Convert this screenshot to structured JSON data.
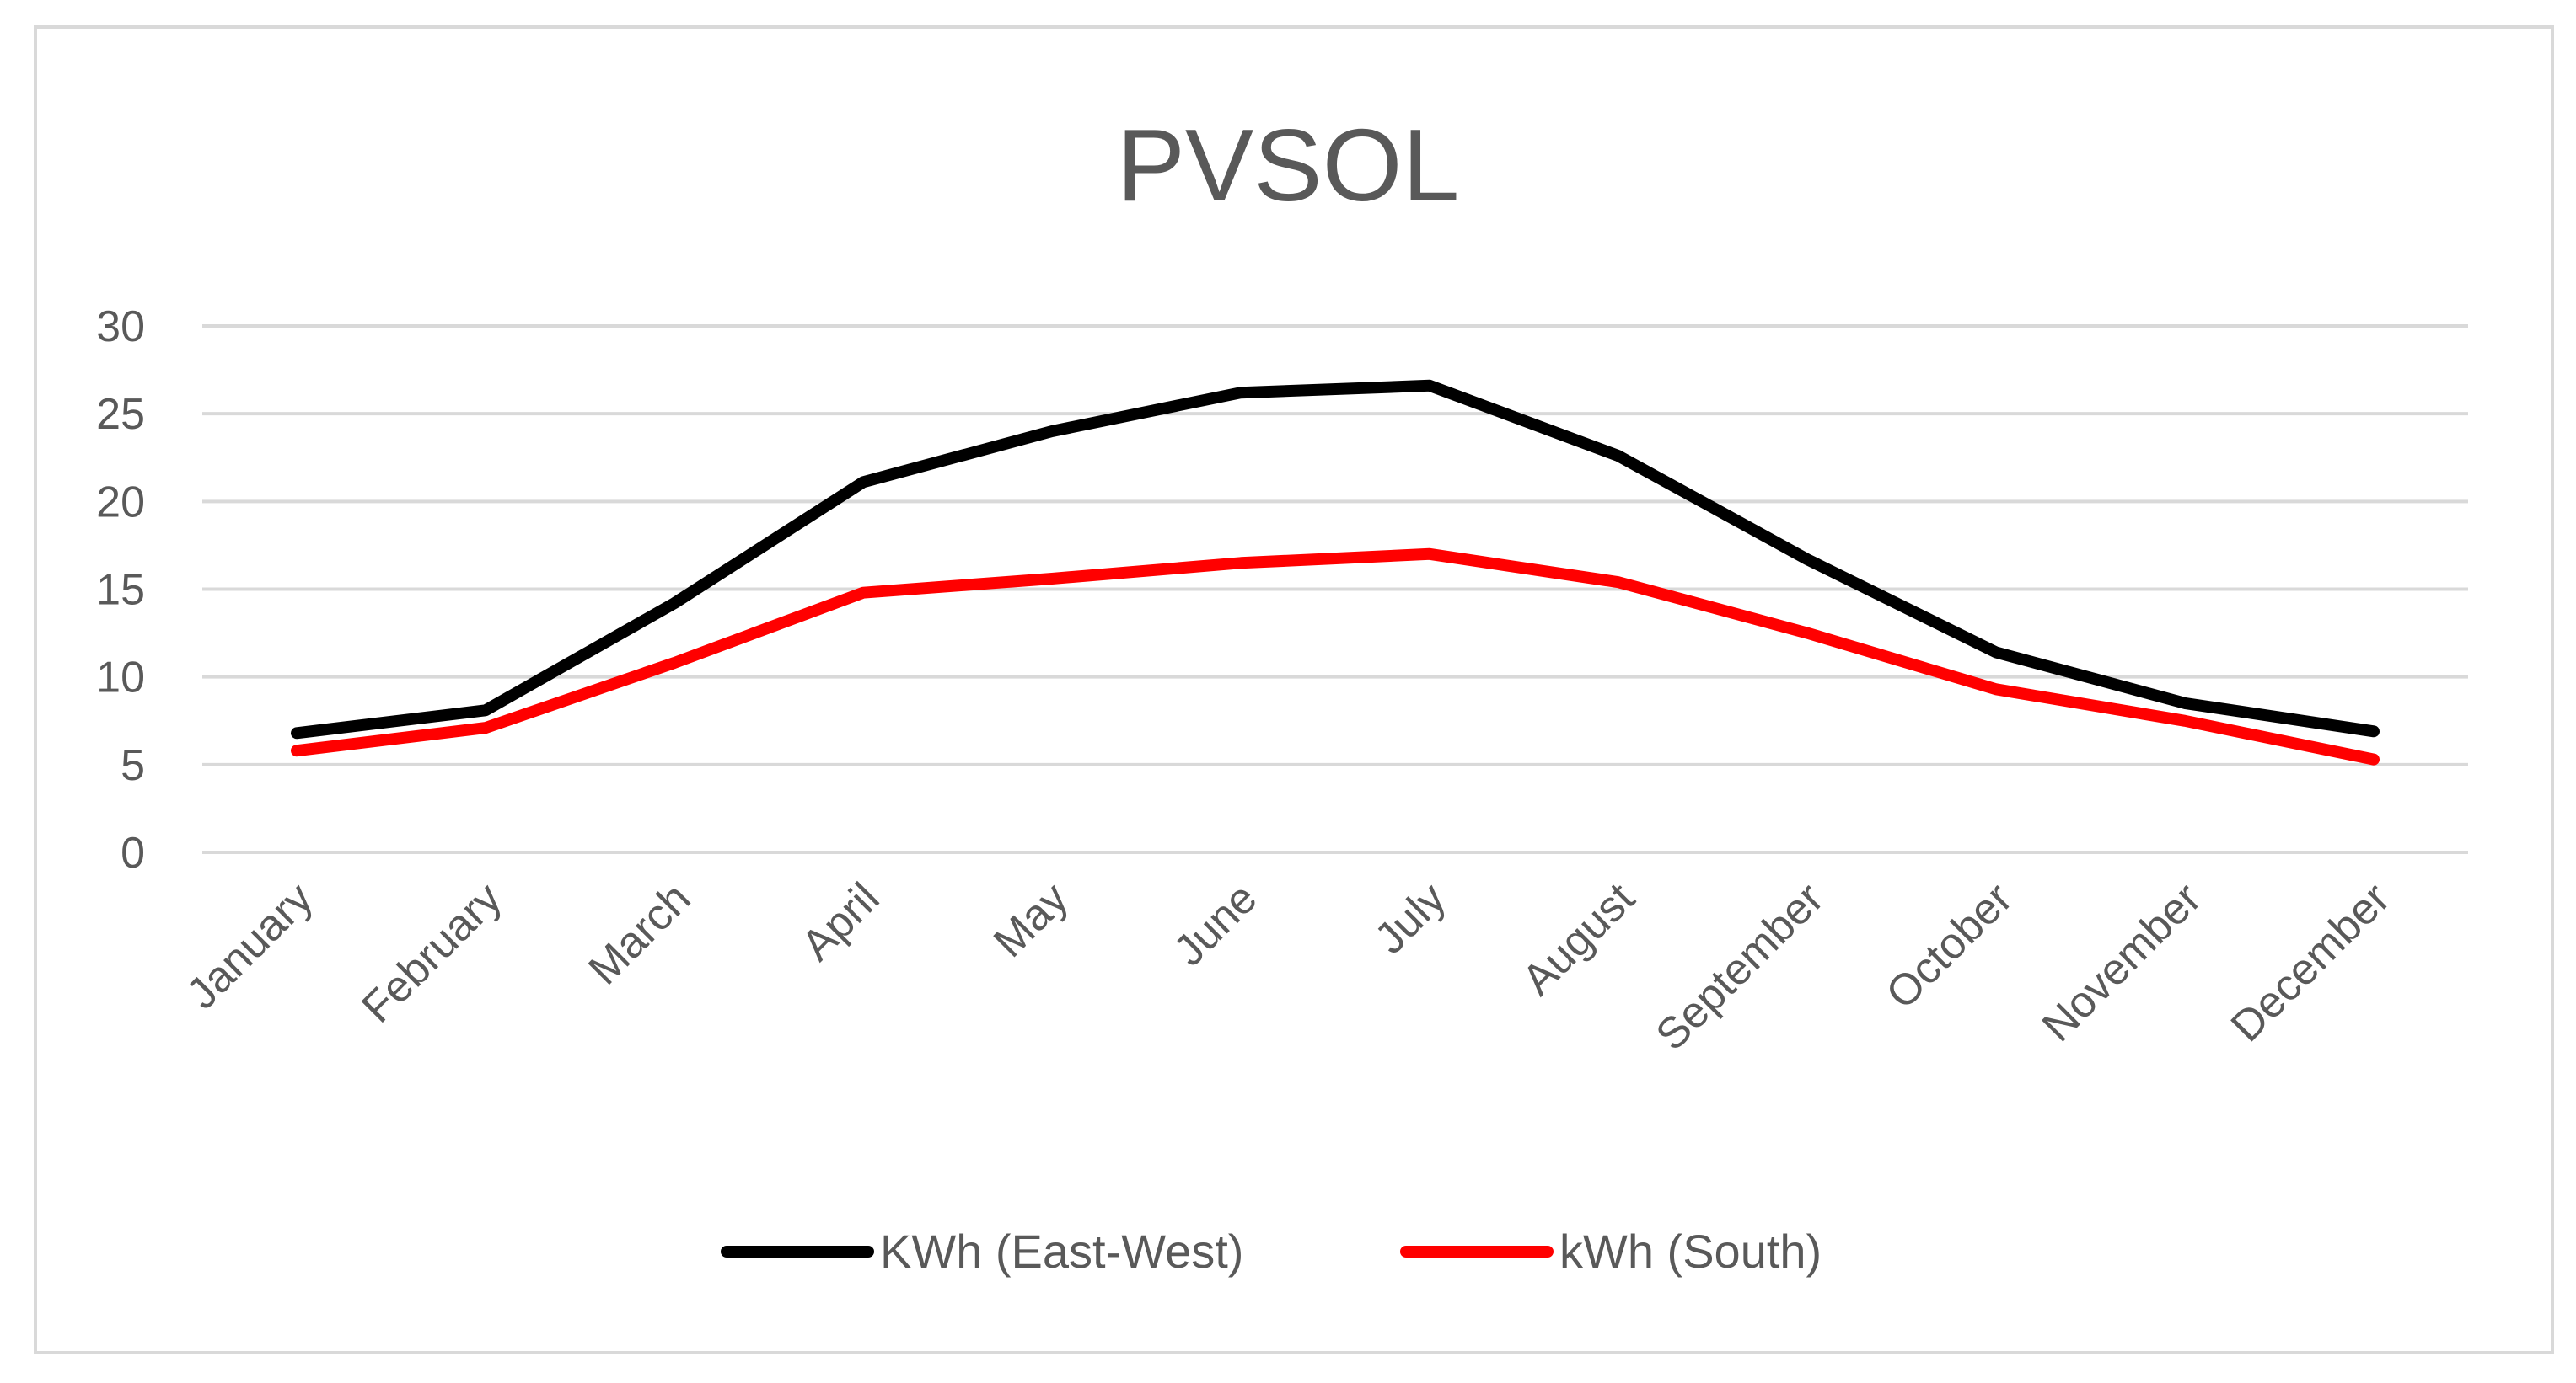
{
  "chart_data": {
    "type": "line",
    "title": "PVSOL",
    "xlabel": "",
    "ylabel": "",
    "ylim": [
      0,
      30
    ],
    "yticks": [
      0,
      5,
      10,
      15,
      20,
      25,
      30
    ],
    "grid": true,
    "legend_position": "bottom",
    "categories": [
      "January",
      "February",
      "March",
      "April",
      "May",
      "June",
      "July",
      "August",
      "September",
      "October",
      "November",
      "December"
    ],
    "series": [
      {
        "name": "KWh (East-West)",
        "color": "#000000",
        "values": [
          6.8,
          8.1,
          14.2,
          21.1,
          24.0,
          26.2,
          26.6,
          22.6,
          16.7,
          11.4,
          8.5,
          6.9
        ]
      },
      {
        "name": "kWh (South)",
        "color": "#ff0000",
        "values": [
          5.8,
          7.1,
          10.8,
          14.8,
          15.6,
          16.5,
          17.0,
          15.4,
          12.5,
          9.3,
          7.5,
          5.3
        ]
      }
    ]
  }
}
